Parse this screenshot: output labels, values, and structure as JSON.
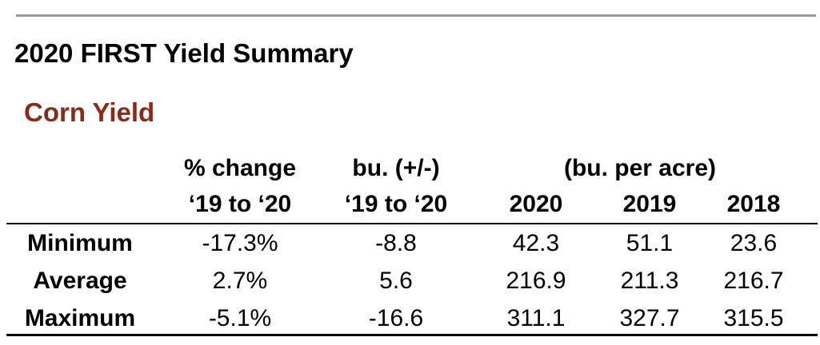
{
  "header": {
    "title": "2020 FIRST Yield Summary",
    "subtitle": "Corn Yield"
  },
  "colors": {
    "subtitle": "#8a2a17",
    "top_rule": "#9a9a9a"
  },
  "table": {
    "header_top": [
      "% change",
      "bu. (+/-)",
      "(bu. per acre)"
    ],
    "header_bottom": [
      "‘19 to ‘20",
      "‘19 to ‘20",
      "2020",
      "2019",
      "2018"
    ],
    "rows": [
      {
        "label": "Minimum",
        "values": [
          "-17.3%",
          "-8.8",
          "42.3",
          "51.1",
          "23.6"
        ]
      },
      {
        "label": "Average",
        "values": [
          "2.7%",
          "5.6",
          "216.9",
          "211.3",
          "216.7"
        ]
      },
      {
        "label": "Maximum",
        "values": [
          "-5.1%",
          "-16.6",
          "311.1",
          "327.7",
          "315.5"
        ]
      }
    ]
  }
}
